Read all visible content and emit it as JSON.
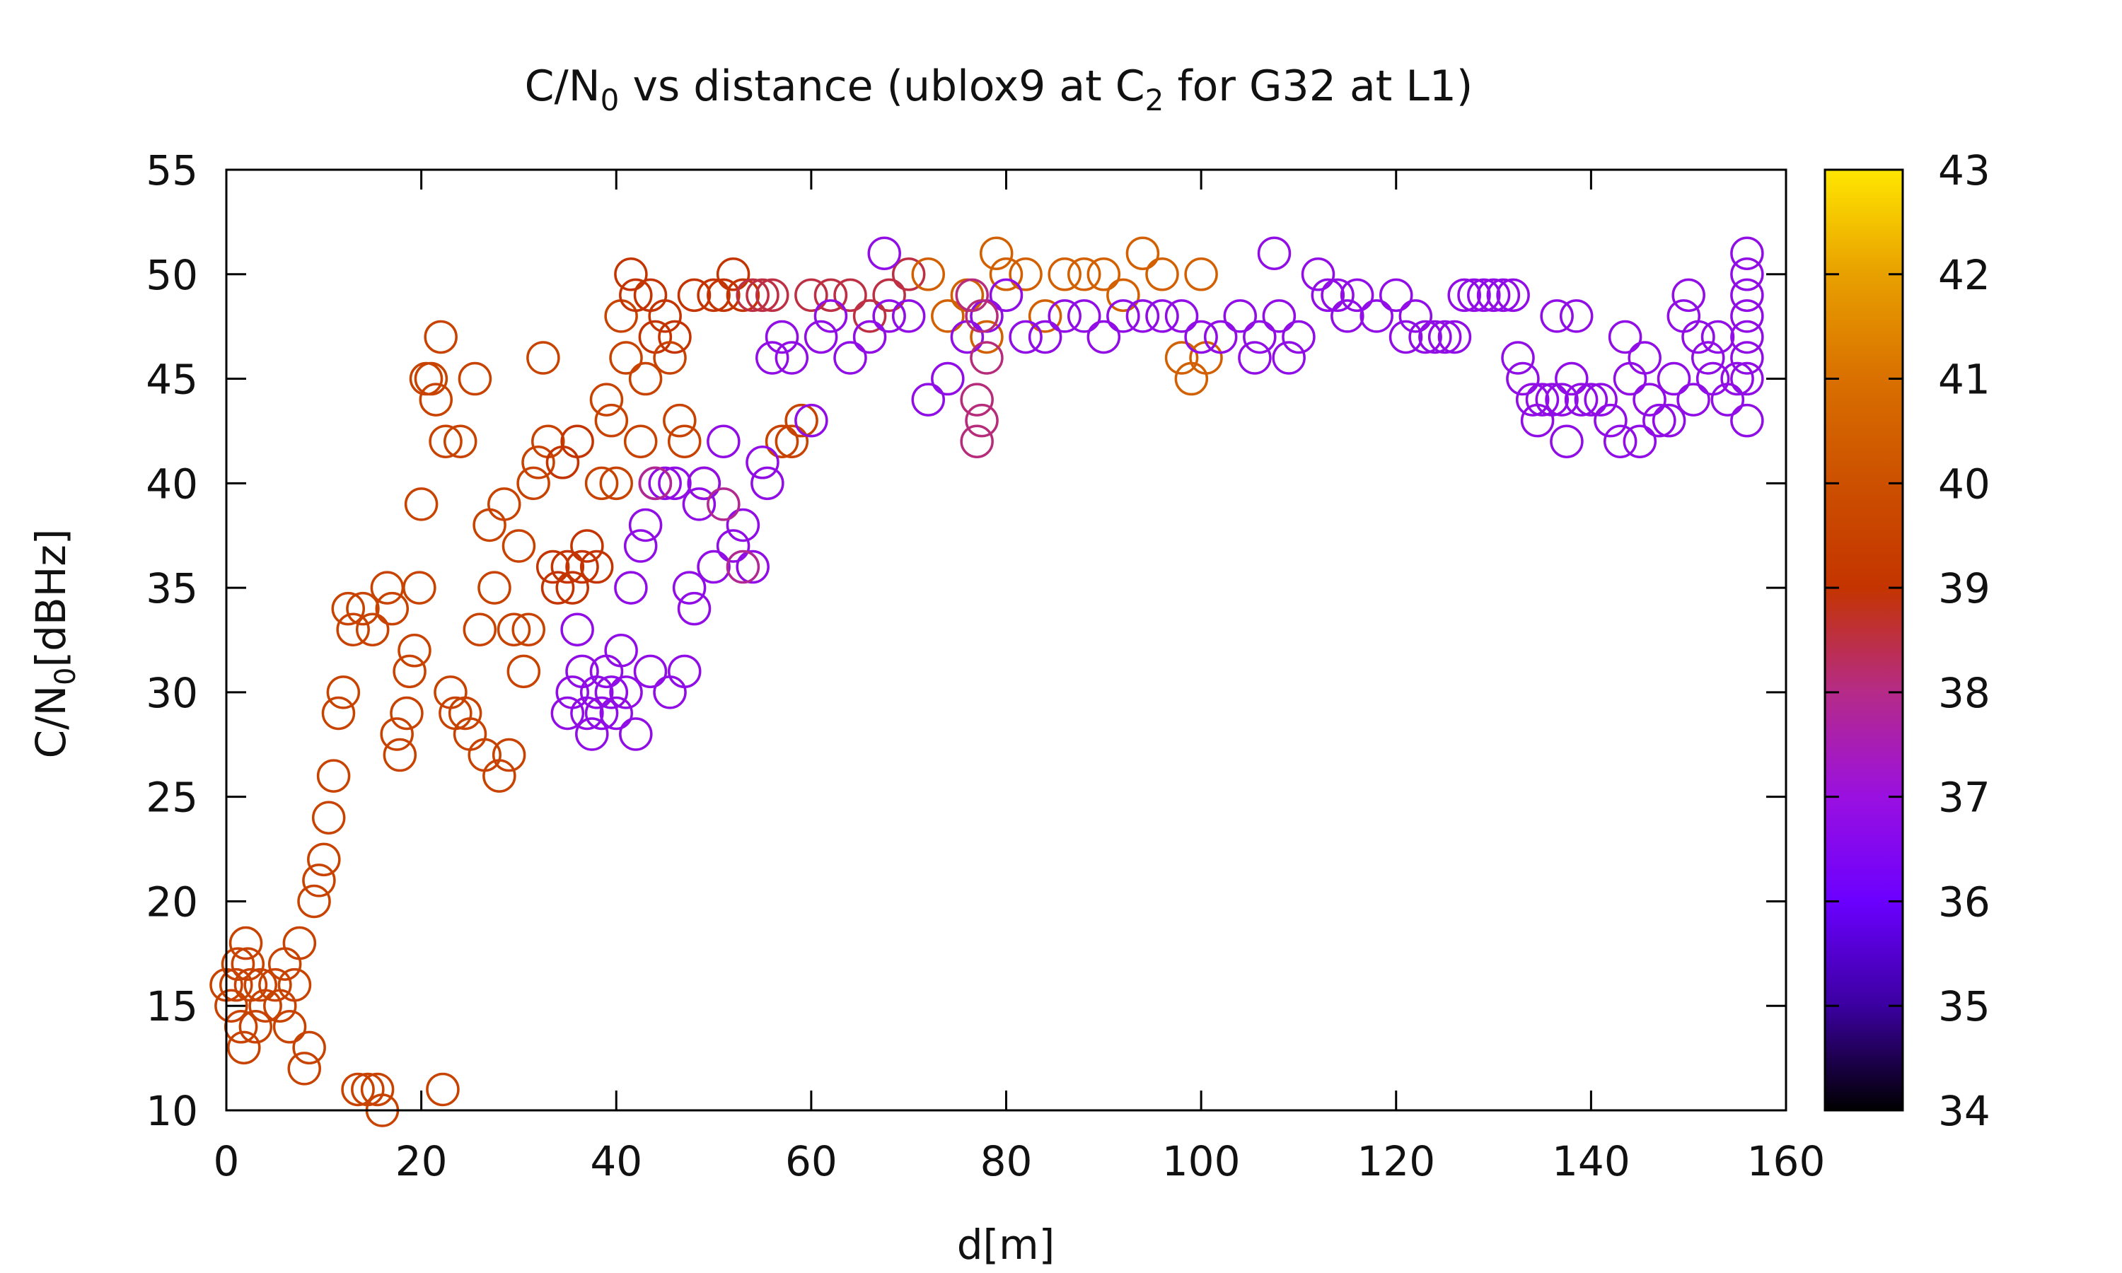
{
  "chart_data": {
    "type": "scatter",
    "title": {
      "main": "C/N",
      "sub": "0",
      "mid": " vs distance (ublox9 at C",
      "sub2": "2",
      "tail": " for G32 at L1)"
    },
    "xlabel": "d[m]",
    "ylabel": {
      "main": "C/N",
      "sub": "0",
      "tail": "[dBHz]"
    },
    "xlim": [
      0,
      160
    ],
    "ylim": [
      10,
      55
    ],
    "x_ticks": [
      "0",
      "20",
      "40",
      "60",
      "80",
      "100",
      "120",
      "140",
      "160"
    ],
    "y_ticks": [
      "10",
      "15",
      "20",
      "25",
      "30",
      "35",
      "40",
      "45",
      "50",
      "55"
    ],
    "colorbar": {
      "range": [
        34,
        43
      ],
      "ticks": [
        "34",
        "35",
        "36",
        "37",
        "38",
        "39",
        "40",
        "41",
        "42",
        "43"
      ],
      "palette": [
        "#000000",
        "#3b00a0",
        "#6b00ff",
        "#9a10e0",
        "#b52b88",
        "#c43400",
        "#cc5000",
        "#d97000",
        "#e8a000",
        "#ffe600"
      ]
    },
    "marker": "open-circle",
    "points": [
      [
        0.0,
        16,
        39.5
      ],
      [
        0.5,
        15,
        39.5
      ],
      [
        1.0,
        16,
        39.5
      ],
      [
        1.2,
        17,
        39.5
      ],
      [
        1.5,
        14,
        39.5
      ],
      [
        1.8,
        13,
        39.5
      ],
      [
        2.0,
        18,
        39.5
      ],
      [
        2.2,
        17,
        39.5
      ],
      [
        2.5,
        16,
        39.5
      ],
      [
        3.0,
        14,
        39.5
      ],
      [
        3.5,
        16,
        39.5
      ],
      [
        4.0,
        15,
        39.5
      ],
      [
        5.0,
        16,
        39.5
      ],
      [
        5.5,
        15,
        39.5
      ],
      [
        6.0,
        17,
        39.5
      ],
      [
        6.5,
        14,
        39.5
      ],
      [
        7.0,
        16,
        39.5
      ],
      [
        7.5,
        18,
        39.5
      ],
      [
        8.0,
        12,
        39.5
      ],
      [
        8.5,
        13,
        39.5
      ],
      [
        9.0,
        20,
        39.5
      ],
      [
        9.5,
        21,
        39.5
      ],
      [
        10.0,
        22,
        39.5
      ],
      [
        10.5,
        24,
        39.5
      ],
      [
        11.0,
        26,
        39.5
      ],
      [
        11.5,
        29,
        39.5
      ],
      [
        12.0,
        30,
        39.5
      ],
      [
        12.5,
        34,
        39.5
      ],
      [
        13.0,
        33,
        39.5
      ],
      [
        13.5,
        11,
        39.5
      ],
      [
        14.0,
        34,
        39.5
      ],
      [
        14.5,
        11,
        39.5
      ],
      [
        15.0,
        33,
        39.5
      ],
      [
        15.5,
        11,
        39.5
      ],
      [
        16.0,
        10,
        39.5
      ],
      [
        16.5,
        35,
        39.5
      ],
      [
        17.0,
        34,
        39.5
      ],
      [
        17.5,
        28,
        39.5
      ],
      [
        17.8,
        27,
        39.5
      ],
      [
        18.5,
        29,
        39.5
      ],
      [
        18.8,
        31,
        39.5
      ],
      [
        19.3,
        32,
        39.5
      ],
      [
        19.8,
        35,
        39.5
      ],
      [
        20.0,
        39,
        39.5
      ],
      [
        20.5,
        45,
        39.5
      ],
      [
        21.0,
        45,
        39.5
      ],
      [
        21.5,
        44,
        39.5
      ],
      [
        22.0,
        47,
        39.5
      ],
      [
        22.2,
        11,
        39.5
      ],
      [
        22.5,
        42,
        39.5
      ],
      [
        23.0,
        30,
        39.5
      ],
      [
        23.5,
        29,
        39.5
      ],
      [
        24.0,
        42,
        39.5
      ],
      [
        24.5,
        29,
        39.5
      ],
      [
        25.0,
        28,
        39.5
      ],
      [
        25.5,
        45,
        39.5
      ],
      [
        26.0,
        33,
        39.5
      ],
      [
        26.5,
        27,
        39.5
      ],
      [
        27.0,
        38,
        39.5
      ],
      [
        27.5,
        35,
        39.5
      ],
      [
        28.0,
        26,
        39.5
      ],
      [
        28.5,
        39,
        39.5
      ],
      [
        29.0,
        27,
        39.5
      ],
      [
        29.5,
        33,
        39.5
      ],
      [
        30.0,
        37,
        39.5
      ],
      [
        30.5,
        31,
        39.5
      ],
      [
        31.0,
        33,
        39.5
      ],
      [
        31.5,
        40,
        39.5
      ],
      [
        32.0,
        41,
        39.5
      ],
      [
        32.5,
        46,
        39.5
      ],
      [
        33.0,
        42,
        39.5
      ],
      [
        33.5,
        36,
        39
      ],
      [
        34.0,
        35,
        39
      ],
      [
        34.5,
        41,
        39
      ],
      [
        35.0,
        36,
        39
      ],
      [
        35.5,
        35,
        39
      ],
      [
        36.0,
        42,
        39
      ],
      [
        36.5,
        36,
        39
      ],
      [
        37.0,
        37,
        39
      ],
      [
        38.0,
        36,
        39
      ],
      [
        38.5,
        40,
        39.5
      ],
      [
        39.0,
        44,
        39.5
      ],
      [
        39.5,
        43,
        39.5
      ],
      [
        40.0,
        40,
        39.5
      ],
      [
        40.5,
        48,
        39.5
      ],
      [
        41.0,
        46,
        39.5
      ],
      [
        41.5,
        50,
        39
      ],
      [
        42.0,
        49,
        39
      ],
      [
        42.5,
        42,
        39.5
      ],
      [
        43.0,
        45,
        39.5
      ],
      [
        43.5,
        49,
        39
      ],
      [
        44.0,
        47,
        39
      ],
      [
        45.0,
        48,
        39
      ],
      [
        45.5,
        46,
        39.5
      ],
      [
        46.0,
        47,
        39
      ],
      [
        46.5,
        43,
        39.5
      ],
      [
        47.0,
        42,
        39.5
      ],
      [
        48.0,
        49,
        39
      ],
      [
        49.0,
        40,
        39.5
      ],
      [
        50.0,
        49,
        39
      ],
      [
        51.0,
        49,
        39
      ],
      [
        52.0,
        50,
        39
      ],
      [
        53.0,
        49,
        39
      ],
      [
        54.0,
        49,
        38.5
      ],
      [
        55.0,
        49,
        38.5
      ],
      [
        56.0,
        49,
        38.5
      ],
      [
        57.0,
        42,
        39.5
      ],
      [
        58.0,
        42,
        39.5
      ],
      [
        59.0,
        43,
        39.5
      ],
      [
        60.0,
        49,
        38.5
      ],
      [
        62.0,
        49,
        38.5
      ],
      [
        64.0,
        49,
        38.5
      ],
      [
        66.0,
        48,
        38.5
      ],
      [
        68.0,
        49,
        38.5
      ],
      [
        70.0,
        50,
        38.5
      ],
      [
        72.0,
        50,
        40.5
      ],
      [
        74.0,
        48,
        40.5
      ],
      [
        76.0,
        49,
        40.5
      ],
      [
        78.0,
        47,
        40.5
      ],
      [
        79.0,
        51,
        40.5
      ],
      [
        80.0,
        50,
        40.5
      ],
      [
        82.0,
        50,
        40.5
      ],
      [
        84.0,
        48,
        40.5
      ],
      [
        86.0,
        50,
        40.5
      ],
      [
        88.0,
        50,
        40.5
      ],
      [
        90.0,
        50,
        40.5
      ],
      [
        92.0,
        49,
        40.5
      ],
      [
        94.0,
        51,
        40.5
      ],
      [
        96.0,
        50,
        40.5
      ],
      [
        98.0,
        46,
        40.5
      ],
      [
        99.0,
        45,
        40.5
      ],
      [
        100.0,
        50,
        40.5
      ],
      [
        100.5,
        46,
        40.5
      ],
      [
        35.0,
        29,
        36.8
      ],
      [
        35.5,
        30,
        36.8
      ],
      [
        36.0,
        33,
        36.8
      ],
      [
        36.5,
        31,
        36.8
      ],
      [
        37.0,
        29,
        36.8
      ],
      [
        37.5,
        28,
        36.8
      ],
      [
        38.0,
        30,
        36.8
      ],
      [
        38.5,
        29,
        36.8
      ],
      [
        39.0,
        31,
        36.8
      ],
      [
        39.5,
        30,
        36.8
      ],
      [
        40.0,
        29,
        36.8
      ],
      [
        40.5,
        32,
        36.8
      ],
      [
        41.0,
        30,
        36.8
      ],
      [
        41.5,
        35,
        36.8
      ],
      [
        42.0,
        28,
        36.8
      ],
      [
        42.5,
        37,
        36.8
      ],
      [
        43.0,
        38,
        36.8
      ],
      [
        43.5,
        31,
        36.8
      ],
      [
        44.0,
        40,
        36.8
      ],
      [
        45.0,
        40,
        36.8
      ],
      [
        45.5,
        30,
        36.8
      ],
      [
        46.0,
        40,
        36.8
      ],
      [
        47.0,
        31,
        36.8
      ],
      [
        47.5,
        35,
        36.8
      ],
      [
        48.0,
        34,
        36.8
      ],
      [
        48.5,
        39,
        36.8
      ],
      [
        49.0,
        40,
        36.8
      ],
      [
        50.0,
        36,
        36.8
      ],
      [
        51.0,
        42,
        36.8
      ],
      [
        52.0,
        37,
        36.8
      ],
      [
        53.0,
        38,
        36.8
      ],
      [
        54.0,
        36,
        36.8
      ],
      [
        55.0,
        41,
        36.8
      ],
      [
        55.5,
        40,
        36.8
      ],
      [
        56.0,
        46,
        36.8
      ],
      [
        57.0,
        47,
        36.8
      ],
      [
        58.0,
        46,
        36.8
      ],
      [
        60.0,
        43,
        36.8
      ],
      [
        61.0,
        47,
        36.8
      ],
      [
        62.0,
        48,
        36.8
      ],
      [
        64.0,
        46,
        36.8
      ],
      [
        66.0,
        47,
        36.8
      ],
      [
        67.5,
        51,
        36.8
      ],
      [
        68.0,
        48,
        36.8
      ],
      [
        70.0,
        48,
        36.8
      ],
      [
        72.0,
        44,
        36.8
      ],
      [
        74.0,
        45,
        36.8
      ],
      [
        76.0,
        47,
        36.8
      ],
      [
        78.0,
        48,
        36.8
      ],
      [
        80.0,
        49,
        36.8
      ],
      [
        82.0,
        47,
        36.8
      ],
      [
        84.0,
        47,
        36.8
      ],
      [
        86.0,
        48,
        36.8
      ],
      [
        88.0,
        48,
        36.8
      ],
      [
        90.0,
        47,
        36.8
      ],
      [
        92.0,
        48,
        36.8
      ],
      [
        94.0,
        48,
        36.8
      ],
      [
        96.0,
        48,
        36.8
      ],
      [
        98.0,
        48,
        36.8
      ],
      [
        100.0,
        47,
        36.8
      ],
      [
        102.0,
        47,
        36.8
      ],
      [
        104.0,
        48,
        36.8
      ],
      [
        105.5,
        46,
        36.8
      ],
      [
        106.0,
        47,
        36.8
      ],
      [
        107.5,
        51,
        36.8
      ],
      [
        108.0,
        48,
        36.8
      ],
      [
        109.0,
        46,
        36.8
      ],
      [
        110.0,
        47,
        36.8
      ],
      [
        112.0,
        50,
        36.8
      ],
      [
        113.0,
        49,
        36.8
      ],
      [
        114.0,
        49,
        36.8
      ],
      [
        115.0,
        48,
        36.8
      ],
      [
        116.0,
        49,
        36.8
      ],
      [
        118.0,
        48,
        36.8
      ],
      [
        120.0,
        49,
        36.8
      ],
      [
        121.0,
        47,
        36.8
      ],
      [
        122.0,
        48,
        36.8
      ],
      [
        123.0,
        47,
        36.8
      ],
      [
        124.0,
        47,
        36.8
      ],
      [
        125.0,
        47,
        36.8
      ],
      [
        126.0,
        47,
        36.8
      ],
      [
        127.0,
        49,
        36.8
      ],
      [
        128.0,
        49,
        36.8
      ],
      [
        129.0,
        49,
        36.8
      ],
      [
        130.0,
        49,
        36.8
      ],
      [
        131.0,
        49,
        36.8
      ],
      [
        132.0,
        49,
        36.8
      ],
      [
        132.5,
        46,
        36.8
      ],
      [
        133.0,
        45,
        36.8
      ],
      [
        134.0,
        44,
        36.8
      ],
      [
        134.5,
        43,
        36.8
      ],
      [
        135.0,
        44,
        36.8
      ],
      [
        136.0,
        44,
        36.8
      ],
      [
        136.5,
        48,
        36.8
      ],
      [
        137.0,
        44,
        36.8
      ],
      [
        137.5,
        42,
        36.8
      ],
      [
        138.0,
        45,
        36.8
      ],
      [
        138.5,
        48,
        36.8
      ],
      [
        139.0,
        44,
        36.8
      ],
      [
        140.0,
        44,
        36.8
      ],
      [
        141.0,
        44,
        36.8
      ],
      [
        142.0,
        43,
        36.8
      ],
      [
        143.0,
        42,
        36.8
      ],
      [
        143.5,
        47,
        36.8
      ],
      [
        144.0,
        45,
        36.8
      ],
      [
        145.0,
        42,
        36.8
      ],
      [
        145.5,
        46,
        36.8
      ],
      [
        146.0,
        44,
        36.8
      ],
      [
        147.0,
        43,
        36.8
      ],
      [
        148.0,
        43,
        36.8
      ],
      [
        148.5,
        45,
        36.8
      ],
      [
        149.5,
        48,
        36.8
      ],
      [
        150.0,
        49,
        36.8
      ],
      [
        150.5,
        44,
        36.8
      ],
      [
        151.0,
        47,
        36.8
      ],
      [
        152.0,
        46,
        36.8
      ],
      [
        152.5,
        45,
        36.8
      ],
      [
        153.0,
        47,
        36.8
      ],
      [
        154.0,
        44,
        36.8
      ],
      [
        155.0,
        45,
        36.8
      ],
      [
        156.0,
        51,
        36.8
      ],
      [
        156.0,
        50,
        36.8
      ],
      [
        156.0,
        49,
        36.8
      ],
      [
        156.0,
        48,
        36.8
      ],
      [
        156.0,
        47,
        36.8
      ],
      [
        156.0,
        46,
        36.8
      ],
      [
        156.0,
        45,
        36.8
      ],
      [
        156.0,
        43,
        36.8
      ],
      [
        77.0,
        42,
        38.1
      ],
      [
        77.5,
        43,
        38.1
      ],
      [
        77.0,
        44,
        38.1
      ],
      [
        77.5,
        48,
        38.1
      ],
      [
        78.0,
        46,
        38.1
      ],
      [
        76.5,
        49,
        38.1
      ],
      [
        44.0,
        40,
        37.9
      ],
      [
        51.0,
        39,
        37.9
      ],
      [
        53.0,
        36,
        37.9
      ]
    ]
  }
}
